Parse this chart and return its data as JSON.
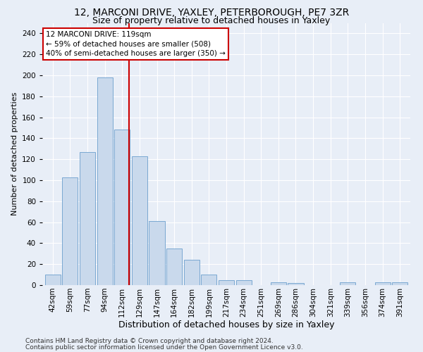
{
  "title1": "12, MARCONI DRIVE, YAXLEY, PETERBOROUGH, PE7 3ZR",
  "title2": "Size of property relative to detached houses in Yaxley",
  "xlabel": "Distribution of detached houses by size in Yaxley",
  "ylabel": "Number of detached properties",
  "bar_color": "#c9d9ec",
  "bar_edge_color": "#7aa8d2",
  "categories": [
    "42sqm",
    "59sqm",
    "77sqm",
    "94sqm",
    "112sqm",
    "129sqm",
    "147sqm",
    "164sqm",
    "182sqm",
    "199sqm",
    "217sqm",
    "234sqm",
    "251sqm",
    "269sqm",
    "286sqm",
    "304sqm",
    "321sqm",
    "339sqm",
    "356sqm",
    "374sqm",
    "391sqm"
  ],
  "values": [
    10,
    103,
    127,
    198,
    148,
    123,
    61,
    35,
    24,
    10,
    5,
    5,
    0,
    3,
    2,
    0,
    0,
    3,
    0,
    3,
    3
  ],
  "ylim": [
    0,
    250
  ],
  "yticks": [
    0,
    20,
    40,
    60,
    80,
    100,
    120,
    140,
    160,
    180,
    200,
    220,
    240
  ],
  "annotation_line1": "12 MARCONI DRIVE: 119sqm",
  "annotation_line2": "← 59% of detached houses are smaller (508)",
  "annotation_line3": "40% of semi-detached houses are larger (350) →",
  "footer1": "Contains HM Land Registry data © Crown copyright and database right 2024.",
  "footer2": "Contains public sector information licensed under the Open Government Licence v3.0.",
  "background_color": "#e8eef7",
  "grid_color": "#ffffff",
  "annotation_box_color": "#ffffff",
  "annotation_box_edge": "#cc0000",
  "red_line_color": "#cc0000",
  "title1_fontsize": 10,
  "title2_fontsize": 9,
  "xlabel_fontsize": 9,
  "ylabel_fontsize": 8,
  "tick_fontsize": 7.5,
  "annot_fontsize": 7.5,
  "footer_fontsize": 6.5
}
